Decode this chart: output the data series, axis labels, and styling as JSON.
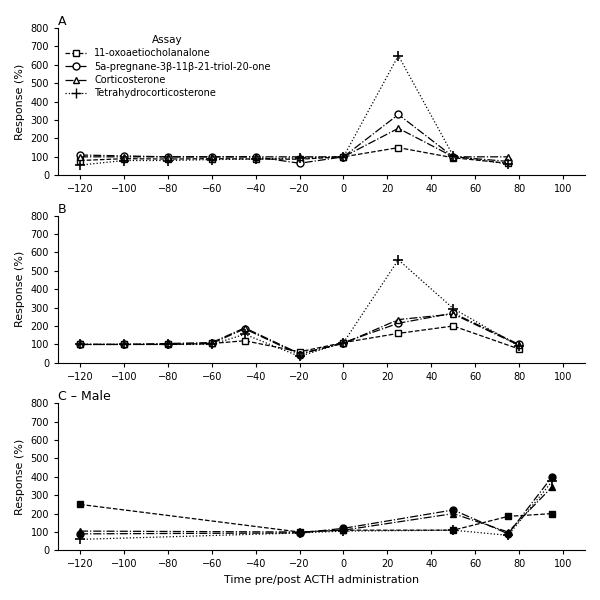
{
  "panel_A": {
    "label": "A",
    "series": [
      {
        "name": "11-oxoaetiocholanalone",
        "x": [
          -120,
          -100,
          -80,
          -60,
          -40,
          -20,
          0,
          25,
          50,
          75
        ],
        "y": [
          80,
          90,
          88,
          90,
          88,
          87,
          100,
          150,
          95,
          65
        ],
        "linestyle": "--",
        "marker": "s",
        "filled": false
      },
      {
        "name": "5a-pregnane",
        "x": [
          -120,
          -100,
          -80,
          -60,
          -40,
          -20,
          0,
          25,
          50,
          75
        ],
        "y": [
          110,
          105,
          100,
          100,
          100,
          65,
          100,
          330,
          100,
          75
        ],
        "linestyle": "-.",
        "marker": "o",
        "filled": false
      },
      {
        "name": "Corticosterone",
        "x": [
          -120,
          -100,
          -80,
          -60,
          -40,
          -20,
          0,
          25,
          50,
          75
        ],
        "y": [
          100,
          100,
          100,
          100,
          100,
          100,
          100,
          255,
          100,
          100
        ],
        "linestyle": "-.",
        "marker": "^",
        "filled": false
      },
      {
        "name": "Tetrahydrocorticosterone",
        "x": [
          -120,
          -100,
          -80,
          -60,
          -40,
          -20,
          0,
          25,
          50,
          75
        ],
        "y": [
          55,
          80,
          80,
          85,
          88,
          95,
          100,
          650,
          105,
          60
        ],
        "linestyle": ":",
        "marker": "+",
        "filled": false
      }
    ]
  },
  "panel_B": {
    "label": "B",
    "series": [
      {
        "name": "11-oxoaetiocholanalone",
        "x": [
          -120,
          -100,
          -80,
          -60,
          -45,
          -20,
          0,
          25,
          50,
          80
        ],
        "y": [
          100,
          100,
          100,
          105,
          120,
          60,
          110,
          160,
          200,
          75
        ],
        "linestyle": "--",
        "marker": "s",
        "filled": false
      },
      {
        "name": "5a-pregnane",
        "x": [
          -120,
          -100,
          -80,
          -60,
          -45,
          -20,
          0,
          25,
          50,
          80
        ],
        "y": [
          100,
          100,
          100,
          105,
          185,
          45,
          110,
          215,
          270,
          100
        ],
        "linestyle": "-.",
        "marker": "o",
        "filled": false
      },
      {
        "name": "Corticosterone",
        "x": [
          -120,
          -100,
          -80,
          -60,
          -45,
          -20,
          0,
          25,
          50,
          80
        ],
        "y": [
          100,
          100,
          105,
          110,
          190,
          50,
          105,
          235,
          265,
          95
        ],
        "linestyle": "-.",
        "marker": "^",
        "filled": false
      },
      {
        "name": "Tetrahydrocorticosterone",
        "x": [
          -120,
          -100,
          -80,
          -60,
          -45,
          -20,
          0,
          25,
          50,
          80
        ],
        "y": [
          100,
          100,
          100,
          100,
          155,
          35,
          110,
          560,
          295,
          90
        ],
        "linestyle": ":",
        "marker": "+",
        "filled": false
      }
    ]
  },
  "panel_C": {
    "label": "C – Male",
    "series": [
      {
        "name": "11-oxoaetiocholanalone",
        "x": [
          -120,
          -20,
          0,
          50,
          75,
          95
        ],
        "y": [
          250,
          100,
          110,
          110,
          185,
          200
        ],
        "linestyle": "--",
        "marker": "s",
        "filled": true
      },
      {
        "name": "5a-pregnane",
        "x": [
          -120,
          -20,
          0,
          50,
          75,
          95
        ],
        "y": [
          90,
          95,
          120,
          220,
          90,
          400
        ],
        "linestyle": "-.",
        "marker": "o",
        "filled": true
      },
      {
        "name": "Corticosterone",
        "x": [
          -120,
          -20,
          0,
          50,
          75,
          95
        ],
        "y": [
          105,
          100,
          110,
          200,
          100,
          345
        ],
        "linestyle": "-.",
        "marker": "^",
        "filled": true
      },
      {
        "name": "Tetrahydrocorticosterone",
        "x": [
          -120,
          -20,
          0,
          50,
          75,
          95
        ],
        "y": [
          60,
          95,
          105,
          110,
          82,
          375
        ],
        "linestyle": ":",
        "marker": "+",
        "filled": true
      }
    ]
  },
  "ylim": [
    0,
    800
  ],
  "yticks": [
    0,
    100,
    200,
    300,
    400,
    500,
    600,
    700,
    800
  ],
  "xlim": [
    -130,
    110
  ],
  "xticks": [
    -120,
    -100,
    -80,
    -60,
    -40,
    -20,
    0,
    20,
    40,
    60,
    80,
    100
  ],
  "xlabel": "Time pre/post ACTH administration",
  "ylabel": "Response (%)",
  "legend_title": "Assay",
  "legend_labels": [
    "11-oxoaetiocholanalone",
    "5a-pregnane-3β-11β-21-triol-20-one",
    "Corticosterone",
    "Tetrahydrocorticosterone"
  ],
  "legend_markers": [
    "s",
    "o",
    "^",
    "+"
  ],
  "legend_linestyles": [
    "--",
    "-.",
    "-.",
    ":"
  ]
}
